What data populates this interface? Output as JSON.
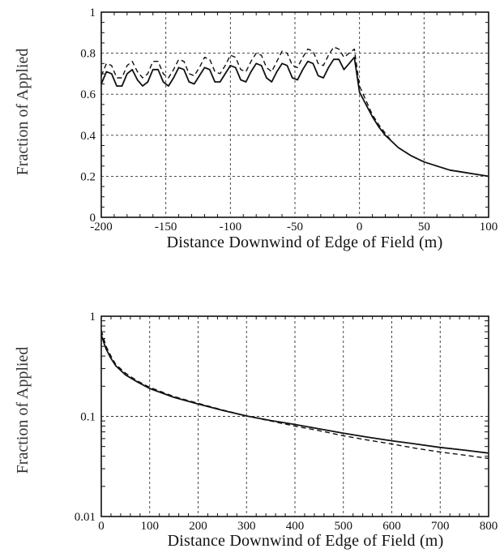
{
  "chart_data": [
    {
      "type": "line",
      "xlabel": "Distance Downwind of Edge of Field (m)",
      "ylabel": "Fraction of Applied",
      "xlim": [
        -200,
        100
      ],
      "ylim": [
        0,
        1
      ],
      "yscale": "linear",
      "grid": true,
      "x_ticks": [
        "-200",
        "-150",
        "-100",
        "-50",
        "0",
        "50",
        "100"
      ],
      "y_ticks": [
        "0",
        "0.2",
        "0.4",
        "0.6",
        "0.8",
        "1"
      ],
      "series": [
        {
          "style": "solid",
          "x": [
            -200,
            -196,
            -192,
            -188,
            -184,
            -180,
            -176,
            -172,
            -168,
            -164,
            -160,
            -156,
            -152,
            -148,
            -144,
            -140,
            -136,
            -132,
            -128,
            -124,
            -120,
            -116,
            -112,
            -108,
            -104,
            -100,
            -96,
            -92,
            -88,
            -84,
            -80,
            -76,
            -72,
            -68,
            -64,
            -60,
            -56,
            -52,
            -48,
            -44,
            -40,
            -36,
            -32,
            -28,
            -24,
            -20,
            -16,
            -12,
            -8,
            -4,
            0,
            5,
            10,
            15,
            20,
            25,
            30,
            40,
            50,
            60,
            70,
            80,
            90,
            100
          ],
          "y": [
            0.65,
            0.71,
            0.7,
            0.64,
            0.64,
            0.7,
            0.72,
            0.67,
            0.64,
            0.66,
            0.72,
            0.72,
            0.66,
            0.64,
            0.68,
            0.73,
            0.72,
            0.66,
            0.65,
            0.69,
            0.73,
            0.72,
            0.66,
            0.66,
            0.7,
            0.74,
            0.73,
            0.67,
            0.66,
            0.71,
            0.75,
            0.74,
            0.68,
            0.66,
            0.71,
            0.75,
            0.74,
            0.68,
            0.67,
            0.72,
            0.76,
            0.75,
            0.69,
            0.68,
            0.73,
            0.77,
            0.77,
            0.72,
            0.75,
            0.78,
            0.61,
            0.55,
            0.49,
            0.44,
            0.4,
            0.37,
            0.34,
            0.3,
            0.27,
            0.25,
            0.23,
            0.22,
            0.21,
            0.2
          ]
        },
        {
          "style": "dashed",
          "x": [
            -200,
            -196,
            -192,
            -188,
            -184,
            -180,
            -176,
            -172,
            -168,
            -164,
            -160,
            -156,
            -152,
            -148,
            -144,
            -140,
            -136,
            -132,
            -128,
            -124,
            -120,
            -116,
            -112,
            -108,
            -104,
            -100,
            -96,
            -92,
            -88,
            -84,
            -80,
            -76,
            -72,
            -68,
            -64,
            -60,
            -56,
            -52,
            -48,
            -44,
            -40,
            -36,
            -32,
            -28,
            -24,
            -20,
            -16,
            -12,
            -8,
            -4,
            0,
            5,
            10,
            15,
            20,
            25,
            30,
            40,
            50,
            60,
            70,
            80,
            90,
            100
          ],
          "y": [
            0.69,
            0.75,
            0.74,
            0.68,
            0.68,
            0.74,
            0.76,
            0.71,
            0.68,
            0.7,
            0.76,
            0.76,
            0.7,
            0.68,
            0.72,
            0.77,
            0.76,
            0.7,
            0.69,
            0.73,
            0.78,
            0.77,
            0.71,
            0.7,
            0.74,
            0.79,
            0.78,
            0.72,
            0.71,
            0.76,
            0.8,
            0.79,
            0.73,
            0.71,
            0.76,
            0.81,
            0.8,
            0.74,
            0.73,
            0.78,
            0.82,
            0.81,
            0.75,
            0.74,
            0.79,
            0.83,
            0.82,
            0.78,
            0.8,
            0.82,
            0.64,
            0.57,
            0.5,
            0.45,
            0.41,
            0.37,
            0.34,
            0.3,
            0.27,
            0.25,
            0.23,
            0.22,
            0.21,
            0.2
          ]
        }
      ]
    },
    {
      "type": "line",
      "xlabel": "Distance Downwind of Edge of Field (m)",
      "ylabel": "Fraction of Applied",
      "xlim": [
        0,
        800
      ],
      "ylim": [
        0.01,
        1
      ],
      "yscale": "log",
      "grid": true,
      "x_ticks": [
        "0",
        "100",
        "200",
        "300",
        "400",
        "500",
        "600",
        "700",
        "800"
      ],
      "y_ticks": [
        "0.01",
        "0.1",
        "1"
      ],
      "series": [
        {
          "style": "solid",
          "x": [
            0,
            5,
            10,
            20,
            30,
            50,
            75,
            100,
            150,
            200,
            250,
            300,
            350,
            400,
            450,
            500,
            550,
            600,
            650,
            700,
            750,
            800
          ],
          "y": [
            0.65,
            0.55,
            0.47,
            0.38,
            0.32,
            0.26,
            0.22,
            0.19,
            0.155,
            0.133,
            0.115,
            0.101,
            0.091,
            0.083,
            0.075,
            0.068,
            0.062,
            0.057,
            0.053,
            0.049,
            0.046,
            0.043
          ]
        },
        {
          "style": "dashed",
          "x": [
            0,
            5,
            10,
            20,
            30,
            50,
            75,
            100,
            150,
            200,
            250,
            300,
            350,
            400,
            450,
            500,
            550,
            600,
            650,
            700,
            750,
            800
          ],
          "y": [
            0.72,
            0.6,
            0.5,
            0.4,
            0.33,
            0.27,
            0.225,
            0.195,
            0.158,
            0.135,
            0.116,
            0.101,
            0.09,
            0.08,
            0.072,
            0.064,
            0.058,
            0.053,
            0.048,
            0.044,
            0.041,
            0.038
          ]
        }
      ]
    }
  ]
}
